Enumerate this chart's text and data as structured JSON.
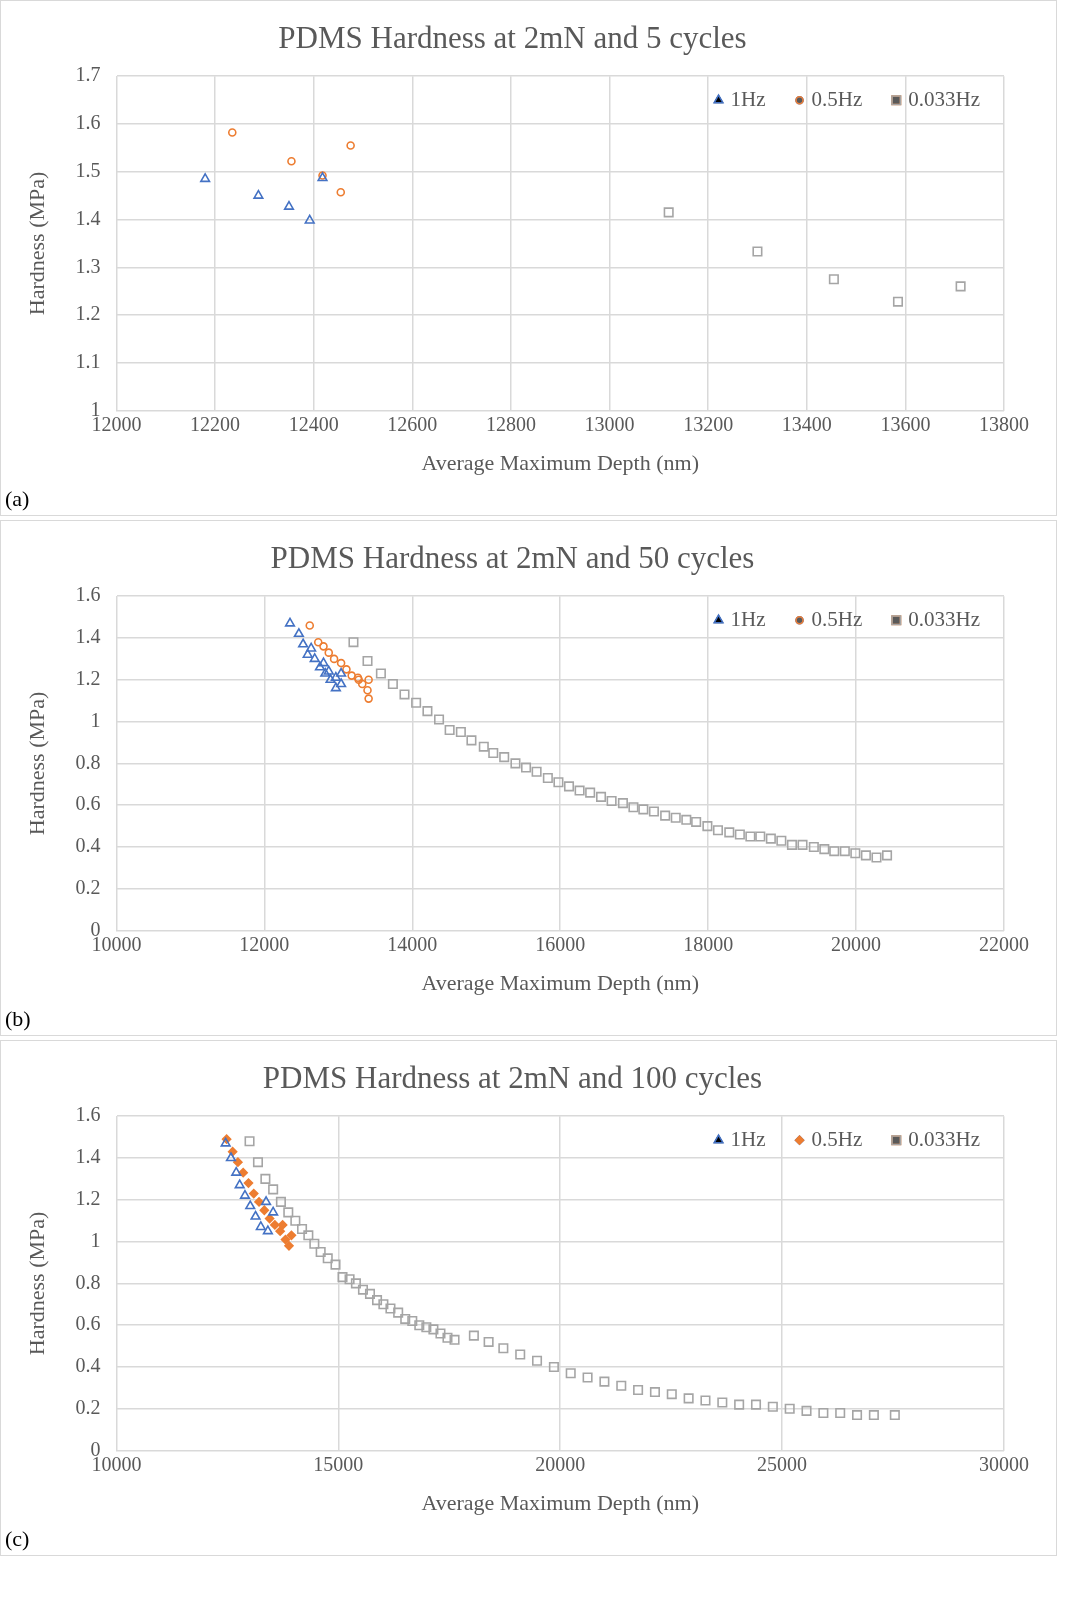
{
  "chart_data": [
    {
      "type": "scatter",
      "title": "PDMS Hardness at 2mN and 5 cycles",
      "xlabel": "Average Maximum Depth (nm)",
      "ylabel": "Hardness (MPa)",
      "annotations": [
        "(a)"
      ],
      "xlim": [
        12000,
        13800
      ],
      "xticks": [
        12000,
        12200,
        12400,
        12600,
        12800,
        13000,
        13200,
        13400,
        13600,
        13800
      ],
      "ylim": [
        1,
        1.7
      ],
      "yticks": [
        1,
        1.1,
        1.2,
        1.3,
        1.4,
        1.5,
        1.6,
        1.7
      ],
      "grid": true,
      "legend": "top right",
      "series": [
        {
          "name": "1Hz",
          "color": "#4472c4",
          "marker": "triangle",
          "x": [
            12180,
            12288,
            12350,
            12392,
            12418
          ],
          "values": [
            1.485,
            1.45,
            1.427,
            1.398,
            1.487
          ]
        },
        {
          "name": "0.5Hz",
          "color": "#ed7d31",
          "marker": "circle",
          "x": [
            12235,
            12355,
            12418,
            12455,
            12475
          ],
          "values": [
            1.582,
            1.522,
            1.492,
            1.457,
            1.555
          ]
        },
        {
          "name": "0.033Hz",
          "color": "#a5a5a5",
          "marker": "square",
          "x": [
            13120,
            13300,
            13455,
            13585,
            13712
          ],
          "values": [
            1.415,
            1.333,
            1.275,
            1.228,
            1.26
          ]
        }
      ]
    },
    {
      "type": "scatter",
      "title": "PDMS Hardness at 2mN and 50 cycles",
      "xlabel": "Average Maximum Depth (nm)",
      "ylabel": "Hardness (MPa)",
      "annotations": [
        "(b)"
      ],
      "xlim": [
        10000,
        22000
      ],
      "xticks": [
        10000,
        12000,
        14000,
        16000,
        18000,
        20000,
        22000
      ],
      "ylim": [
        0,
        1.6
      ],
      "yticks": [
        0,
        0.2,
        0.4,
        0.6,
        0.8,
        1,
        1.2,
        1.4,
        1.6
      ],
      "grid": true,
      "legend": "top right",
      "series": [
        {
          "name": "1Hz",
          "color": "#4472c4",
          "marker": "triangle",
          "x": [
            12347,
            12467,
            12524,
            12586,
            12633,
            12681,
            12752,
            12800,
            12824,
            12871,
            12895,
            12967,
            12967,
            13038,
            13038
          ],
          "values": [
            1.47,
            1.42,
            1.37,
            1.32,
            1.35,
            1.3,
            1.26,
            1.28,
            1.23,
            1.24,
            1.2,
            1.16,
            1.21,
            1.18,
            1.23
          ]
        },
        {
          "name": "0.5Hz",
          "color": "#ed7d31",
          "marker": "circle",
          "x": [
            12614,
            12729,
            12800,
            12871,
            12943,
            13038,
            13110,
            13181,
            13276,
            13266,
            13324,
            13395,
            13410,
            13410
          ],
          "values": [
            1.46,
            1.38,
            1.36,
            1.33,
            1.3,
            1.28,
            1.25,
            1.22,
            1.2,
            1.21,
            1.18,
            1.15,
            1.11,
            1.2
          ]
        },
        {
          "name": "0.033Hz",
          "color": "#a5a5a5",
          "marker": "square",
          "x": [
            13205,
            13395,
            13576,
            13738,
            13895,
            14052,
            14205,
            14362,
            14505,
            14657,
            14800,
            14967,
            15095,
            15243,
            15395,
            15538,
            15681,
            15833,
            15976,
            16119,
            16262,
            16405,
            16552,
            16695,
            16848,
            16990,
            17124,
            17267,
            17419,
            17562,
            17705,
            17838,
            17990,
            18133,
            18286,
            18429,
            18571,
            18705,
            18848,
            18990,
            19133,
            19276,
            19429,
            19571,
            19705,
            19848,
            19990,
            20133,
            20276,
            20419
          ],
          "values": [
            1.38,
            1.29,
            1.23,
            1.18,
            1.13,
            1.09,
            1.05,
            1.01,
            0.96,
            0.95,
            0.91,
            0.88,
            0.85,
            0.83,
            0.8,
            0.78,
            0.76,
            0.73,
            0.71,
            0.69,
            0.67,
            0.66,
            0.64,
            0.62,
            0.61,
            0.59,
            0.58,
            0.57,
            0.55,
            0.54,
            0.53,
            0.52,
            0.5,
            0.48,
            0.47,
            0.46,
            0.45,
            0.45,
            0.44,
            0.43,
            0.41,
            0.41,
            0.4,
            0.39,
            0.38,
            0.38,
            0.37,
            0.36,
            0.35,
            0.36
          ]
        }
      ]
    },
    {
      "type": "scatter",
      "title": "PDMS Hardness at 2mN and 100 cycles",
      "xlabel": "Average Maximum Depth (nm)",
      "ylabel": "Hardness (MPa)",
      "annotations": [
        "(c)"
      ],
      "xlim": [
        10000,
        30000
      ],
      "xticks": [
        10000,
        15000,
        20000,
        25000,
        30000
      ],
      "ylim": [
        0,
        1.6
      ],
      "yticks": [
        0,
        0.2,
        0.4,
        0.6,
        0.8,
        1,
        1.2,
        1.4,
        1.6
      ],
      "grid": true,
      "legend": "top right",
      "series": [
        {
          "name": "1Hz",
          "color": "#4472c4",
          "marker": "triangle",
          "x": [
            12462,
            12581,
            12700,
            12778,
            12897,
            13016,
            13135,
            13254,
            13413,
            13532,
            13373
          ],
          "values": [
            1.47,
            1.4,
            1.33,
            1.27,
            1.22,
            1.17,
            1.12,
            1.07,
            1.05,
            1.14,
            1.19
          ]
        },
        {
          "name": "0.5Hz",
          "color": "#ed7d31",
          "marker": "diamond",
          "x": [
            12484,
            12619,
            12738,
            12857,
            12976,
            13095,
            13214,
            13333,
            13452,
            13571,
            13690,
            13810,
            13889,
            13944,
            13746
          ],
          "values": [
            1.49,
            1.43,
            1.38,
            1.33,
            1.28,
            1.23,
            1.19,
            1.15,
            1.11,
            1.08,
            1.05,
            1.01,
            0.98,
            1.03,
            1.08
          ]
        },
        {
          "name": "0.033Hz",
          "color": "#a5a5a5",
          "marker": "square",
          "x": [
            13000,
            13190,
            13357,
            13532,
            13707,
            13873,
            14032,
            14183,
            14325,
            14460,
            14603,
            14762,
            14937,
            15095,
            15254,
            15397,
            15556,
            15714,
            15873,
            16016,
            16175,
            16349,
            16508,
            16667,
            16825,
            16984,
            17143,
            17302,
            17460,
            17619,
            18055,
            18387,
            18719,
            19099,
            19478,
            19858,
            20237,
            20617,
            20996,
            21376,
            21755,
            22135,
            22514,
            22894,
            23273,
            23653,
            24032,
            24412,
            24791,
            25171,
            25550,
            25930,
            26309,
            26689,
            27068,
            27540
          ],
          "values": [
            1.48,
            1.38,
            1.3,
            1.25,
            1.19,
            1.14,
            1.1,
            1.06,
            1.03,
            0.99,
            0.95,
            0.92,
            0.89,
            0.83,
            0.82,
            0.8,
            0.77,
            0.75,
            0.72,
            0.7,
            0.68,
            0.66,
            0.63,
            0.62,
            0.6,
            0.59,
            0.58,
            0.56,
            0.54,
            0.53,
            0.55,
            0.52,
            0.49,
            0.46,
            0.43,
            0.4,
            0.37,
            0.35,
            0.33,
            0.31,
            0.29,
            0.28,
            0.27,
            0.25,
            0.24,
            0.23,
            0.22,
            0.22,
            0.21,
            0.2,
            0.19,
            0.18,
            0.18,
            0.17,
            0.17,
            0.17
          ]
        }
      ]
    }
  ]
}
